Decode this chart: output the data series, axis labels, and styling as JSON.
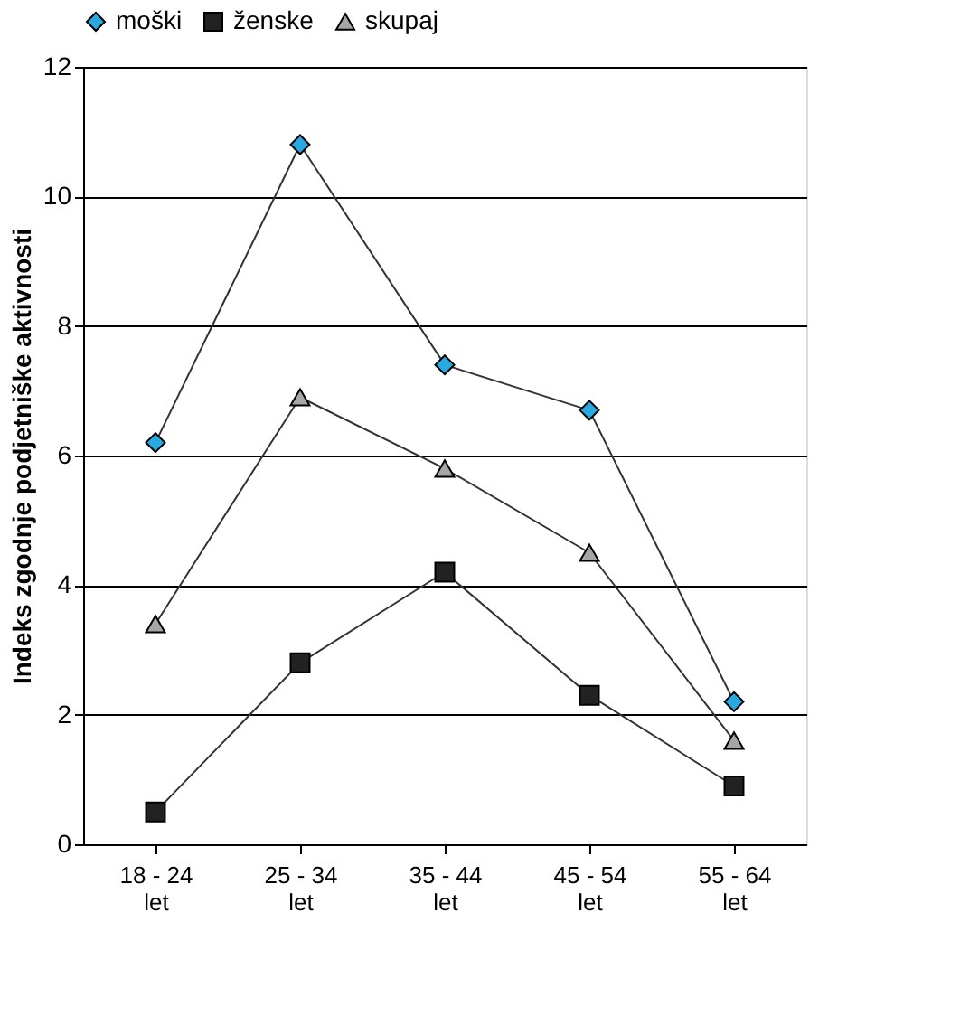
{
  "chart_data": {
    "type": "line",
    "ylabel": "Indeks zgodnje podjetniške aktivnosti",
    "categories": [
      "18 - 24\nlet",
      "25 - 34\nlet",
      "35 - 44\nlet",
      "45 - 54\nlet",
      "55 - 64\nlet"
    ],
    "series": [
      {
        "name": "moški",
        "color": "#2aa8e0",
        "marker": "diamond",
        "values": [
          6.2,
          10.8,
          7.4,
          6.7,
          2.2
        ]
      },
      {
        "name": "ženske",
        "color": "#222222",
        "marker": "square",
        "values": [
          0.5,
          2.8,
          4.2,
          2.3,
          0.9
        ]
      },
      {
        "name": "skupaj",
        "color": "#a6a6a6",
        "marker": "triangle",
        "values": [
          3.4,
          6.9,
          5.8,
          4.5,
          1.6
        ]
      }
    ],
    "ylim": [
      0,
      12
    ],
    "yticks": [
      0,
      2,
      4,
      6,
      8,
      10,
      12
    ],
    "grid": "y",
    "legend": "top",
    "line_style": "solid"
  }
}
